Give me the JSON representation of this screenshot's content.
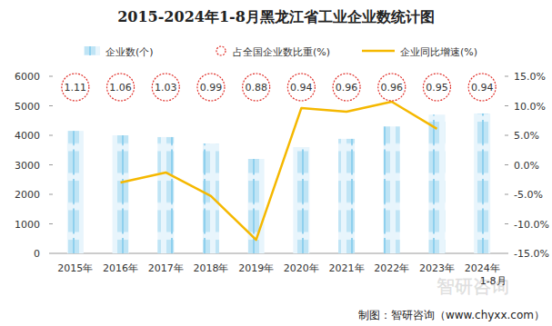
{
  "chart_data": {
    "type": "bar",
    "title": "2015-2024年1-8月黑龙江省工业企业数统计图",
    "categories": [
      "2015年",
      "2016年",
      "2017年",
      "2018年",
      "2019年",
      "2020年",
      "2021年",
      "2022年",
      "2023年",
      "2024年\n1-8月"
    ],
    "series": [
      {
        "name": "企业数(个)",
        "type": "bar",
        "color": "#bfe4f5",
        "values": [
          4150,
          4000,
          3940,
          3720,
          3200,
          3600,
          3880,
          4300,
          4700,
          4740
        ]
      },
      {
        "name": "占全国企业数比重(%)",
        "type": "annotation",
        "marker": "circle",
        "line_style": "dashed",
        "color": "#e0302a",
        "data_labels": true,
        "values": [
          1.11,
          1.06,
          1.03,
          0.99,
          0.88,
          0.94,
          0.96,
          0.96,
          0.95,
          0.94
        ]
      },
      {
        "name": "企业同比增速(%)",
        "type": "line",
        "axis": "y2",
        "color": "#f5b800",
        "values": [
          null,
          -3.0,
          -1.3,
          -5.3,
          -12.7,
          9.6,
          9.0,
          10.7,
          6.1,
          null
        ]
      }
    ],
    "ylim": [
      0,
      6000
    ],
    "yticks": [
      0,
      1000,
      2000,
      3000,
      4000,
      5000,
      6000
    ],
    "y2lim": [
      -15,
      15
    ],
    "y2ticks": [
      {
        "value": -15,
        "label": "-15.0%"
      },
      {
        "value": -10,
        "label": "-10.0%"
      },
      {
        "value": -5,
        "label": "-5.0%"
      },
      {
        "value": 0,
        "label": "0.0%"
      },
      {
        "value": 5,
        "label": "5.0%"
      },
      {
        "value": 10,
        "label": "10.0%"
      },
      {
        "value": 15,
        "label": "15.0%"
      }
    ],
    "grid": false,
    "legend": "top",
    "source": "制图：智研咨询（www.chyxx.com）",
    "watermark": "智研咨询"
  }
}
